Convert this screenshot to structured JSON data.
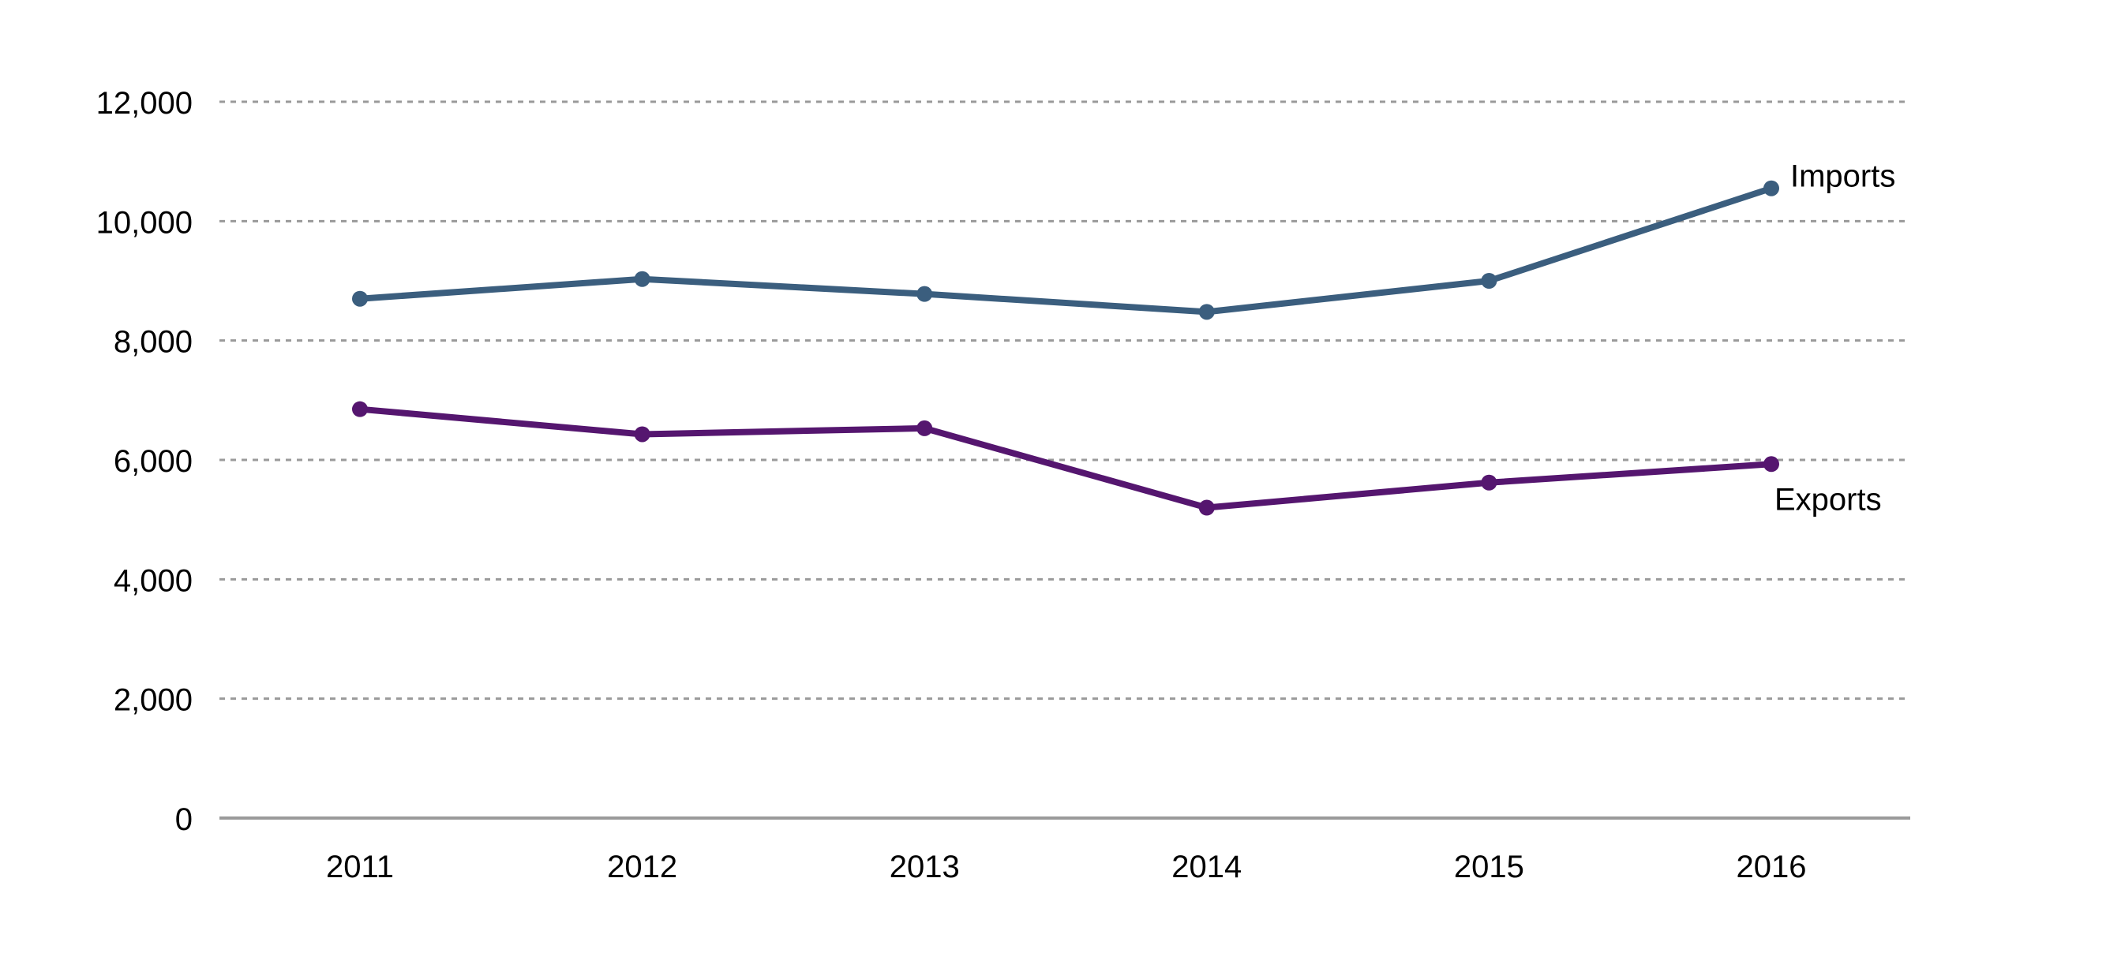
{
  "chart_data": {
    "type": "line",
    "title": "",
    "xlabel": "",
    "ylabel": "",
    "categories": [
      "2011",
      "2012",
      "2013",
      "2014",
      "2015",
      "2016"
    ],
    "ylim": [
      0,
      12000
    ],
    "yticks": [
      0,
      2000,
      4000,
      6000,
      8000,
      10000,
      12000
    ],
    "ytick_labels": [
      "0",
      "2,000",
      "4,000",
      "6,000",
      "8,000",
      "10,000",
      "12,000"
    ],
    "grid": "horizontal dashed",
    "legend": "none (series labelled at line ends)",
    "series": [
      {
        "name": "Imports",
        "color": "#3b5e7e",
        "values": [
          8700,
          9030,
          8780,
          8480,
          9000,
          10550
        ]
      },
      {
        "name": "Exports",
        "color": "#55166f",
        "values": [
          6850,
          6430,
          6530,
          5200,
          5620,
          5930
        ]
      }
    ]
  }
}
